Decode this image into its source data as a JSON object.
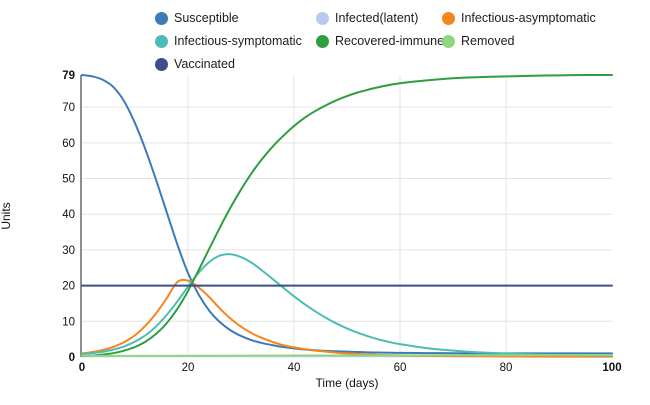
{
  "chart": {
    "x_axis_title": "Time (days)",
    "y_axis_title": "Units"
  },
  "legend": {
    "items": [
      {
        "id": "susceptible",
        "label": "Susceptible",
        "color": "#3d7ab8"
      },
      {
        "id": "infected-latent",
        "label": "Infected(latent)",
        "color": "#b7c9ec"
      },
      {
        "id": "infectious-asymptomatic",
        "label": "Infectious-asymptomatic",
        "color": "#f6851f"
      },
      {
        "id": "infectious-symptomatic",
        "label": "Infectious-symptomatic",
        "color": "#4cbcb4"
      },
      {
        "id": "recovered-immune",
        "label": "Recovered-immune",
        "color": "#2f9e41"
      },
      {
        "id": "removed",
        "label": "Removed",
        "color": "#8fd77f"
      },
      {
        "id": "vaccinated",
        "label": "Vaccinated",
        "color": "#3e4e8c"
      }
    ]
  },
  "chart_data": {
    "type": "line",
    "title": "",
    "xlabel": "Time (days)",
    "ylabel": "Units",
    "xlim": [
      0,
      100
    ],
    "ylim": [
      0,
      79
    ],
    "x_ticks": [
      0,
      20,
      40,
      60,
      80,
      100
    ],
    "y_ticks": [
      0,
      10,
      20,
      30,
      40,
      50,
      60,
      70,
      79
    ],
    "grid": true,
    "legend_position": "top",
    "series": [
      {
        "name": "Susceptible",
        "x": [
          0,
          2,
          4,
          6,
          8,
          10,
          12,
          14,
          16,
          18,
          20,
          22,
          24,
          26,
          28,
          30,
          32,
          34,
          36,
          38,
          40,
          42,
          44,
          46,
          48,
          50,
          52,
          54,
          56,
          58,
          60,
          65,
          70,
          75,
          80,
          85,
          90,
          95,
          100
        ],
        "values": [
          79,
          78.6,
          77.6,
          75.5,
          71.5,
          65.5,
          58,
          49.5,
          40.5,
          31.5,
          23.5,
          17.5,
          13,
          9.8,
          7.5,
          5.9,
          4.7,
          3.9,
          3.3,
          2.8,
          2.4,
          2.1,
          1.9,
          1.7,
          1.6,
          1.5,
          1.4,
          1.3,
          1.25,
          1.2,
          1.15,
          1.1,
          1.05,
          1,
          1,
          1,
          1,
          1,
          1
        ]
      },
      {
        "name": "Infected(latent)",
        "x": [
          0,
          100
        ],
        "values": [
          0.2,
          0.2
        ]
      },
      {
        "name": "Infectious-asymptomatic",
        "x": [
          0,
          2,
          4,
          6,
          8,
          10,
          12,
          14,
          16,
          18,
          20,
          22,
          24,
          26,
          28,
          30,
          32,
          34,
          36,
          38,
          40,
          42,
          44,
          46,
          48,
          50,
          52,
          54,
          56,
          58,
          60,
          65,
          70,
          75,
          80,
          85,
          90,
          95,
          100
        ],
        "values": [
          1,
          1.4,
          2,
          2.9,
          4.2,
          6.1,
          8.8,
          12.3,
          16.5,
          21,
          21.4,
          19.5,
          16.8,
          13.6,
          10.8,
          8.5,
          6.7,
          5.3,
          4.2,
          3.3,
          2.7,
          2.2,
          1.8,
          1.5,
          1.2,
          1,
          0.85,
          0.7,
          0.6,
          0.5,
          0.45,
          0.3,
          0.25,
          0.2,
          0.15,
          0.12,
          0.1,
          0.1,
          0.1
        ]
      },
      {
        "name": "Infectious-symptomatic",
        "x": [
          0,
          2,
          4,
          6,
          8,
          10,
          12,
          14,
          16,
          18,
          20,
          22,
          24,
          26,
          28,
          30,
          32,
          34,
          36,
          38,
          40,
          42,
          44,
          46,
          48,
          50,
          52,
          54,
          56,
          58,
          60,
          65,
          70,
          75,
          80,
          85,
          90,
          95,
          100
        ],
        "values": [
          0.8,
          1.1,
          1.5,
          2.1,
          3,
          4.3,
          6.1,
          8.6,
          11.8,
          15.6,
          19.7,
          23.6,
          26.6,
          28.4,
          28.8,
          28,
          26.4,
          24.2,
          21.8,
          19.4,
          17,
          14.8,
          12.8,
          11,
          9.4,
          8,
          6.8,
          5.8,
          4.9,
          4.2,
          3.6,
          2.5,
          1.8,
          1.3,
          1,
          0.7,
          0.6,
          0.5,
          0.4
        ]
      },
      {
        "name": "Recovered-immune",
        "x": [
          0,
          2,
          4,
          6,
          8,
          10,
          12,
          14,
          16,
          18,
          20,
          22,
          24,
          26,
          28,
          30,
          32,
          34,
          36,
          38,
          40,
          42,
          44,
          46,
          48,
          50,
          52,
          54,
          56,
          58,
          60,
          65,
          70,
          75,
          80,
          85,
          90,
          95,
          100
        ],
        "values": [
          0.2,
          0.4,
          0.7,
          1.1,
          1.8,
          2.8,
          4.3,
          6.5,
          9.5,
          13.5,
          18.5,
          24.3,
          30.3,
          36.2,
          41.8,
          46.9,
          51.5,
          55.5,
          59,
          62,
          64.7,
          67,
          68.9,
          70.5,
          71.9,
          73.1,
          74.1,
          74.9,
          75.6,
          76.2,
          76.7,
          77.5,
          78.1,
          78.4,
          78.6,
          78.8,
          78.9,
          79,
          79
        ]
      },
      {
        "name": "Removed",
        "x": [
          0,
          100
        ],
        "values": [
          0.3,
          0.55
        ]
      },
      {
        "name": "Vaccinated",
        "x": [
          0,
          100
        ],
        "values": [
          20,
          20
        ]
      }
    ]
  }
}
